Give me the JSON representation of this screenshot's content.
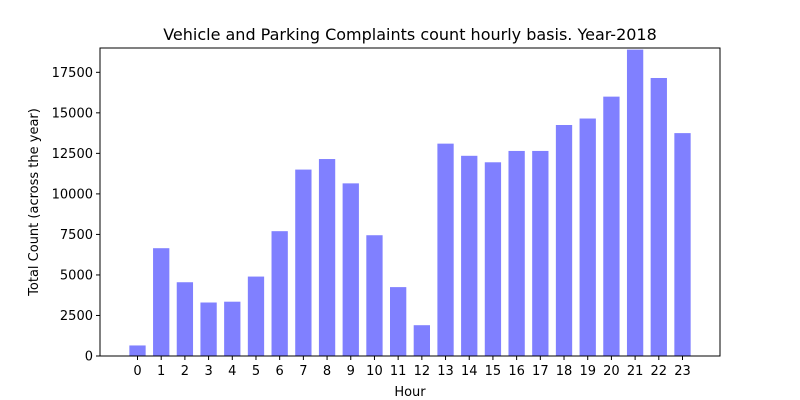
{
  "chart_data": {
    "type": "bar",
    "title": "Vehicle and Parking Complaints count hourly basis. Year-2018",
    "xlabel": "Hour",
    "ylabel": "Total Count (across the year)",
    "categories": [
      "0",
      "1",
      "2",
      "3",
      "4",
      "5",
      "6",
      "7",
      "8",
      "9",
      "10",
      "11",
      "12",
      "13",
      "14",
      "15",
      "16",
      "17",
      "18",
      "19",
      "20",
      "21",
      "22",
      "23"
    ],
    "values": [
      650,
      6650,
      4550,
      3300,
      3350,
      4900,
      7700,
      11500,
      12150,
      10650,
      7450,
      4250,
      1900,
      13100,
      12350,
      11950,
      12650,
      12650,
      14250,
      14650,
      16000,
      18900,
      17150,
      13750
    ],
    "ylim": [
      0,
      19000
    ],
    "yticks": [
      0,
      2500,
      5000,
      7500,
      10000,
      12500,
      15000,
      17500
    ],
    "ytick_labels": [
      "0",
      "2500",
      "5000",
      "7500",
      "10000",
      "12500",
      "15000",
      "17500"
    ],
    "bar_color": "#8080ff",
    "grid": false
  }
}
